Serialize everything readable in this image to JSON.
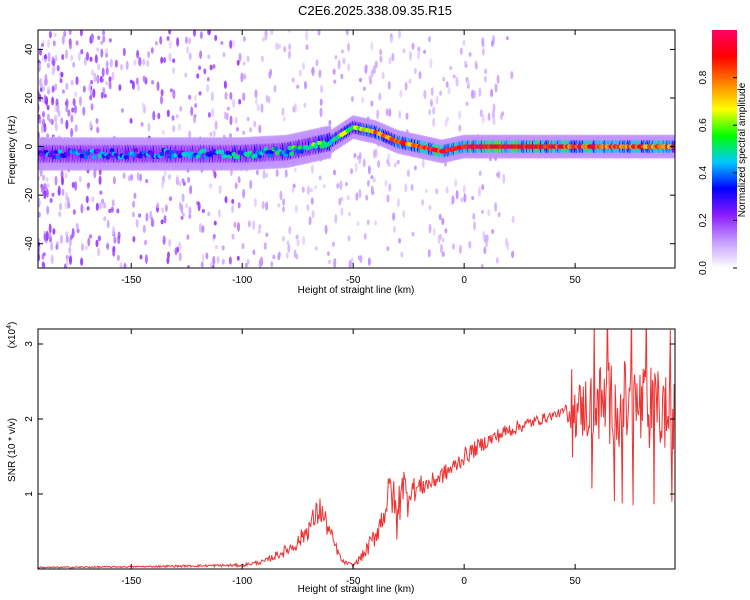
{
  "title": "C2E6.2025.338.09.35.R15",
  "colors": {
    "accent_line": "#ee3333",
    "axis": "#000000"
  },
  "chart_data": [
    {
      "type": "heatmap",
      "xlabel": "Height of straight line (km)",
      "ylabel": "Frequency (Hz)",
      "xlim": [
        -192,
        95
      ],
      "ylim": [
        -50,
        48
      ],
      "xticks": [
        -150,
        -100,
        -50,
        0,
        50
      ],
      "yticks": [
        -40,
        -20,
        0,
        20,
        40
      ],
      "grid": false,
      "colorbar": {
        "label": "Normalized spectral amplitude",
        "range": [
          0.0,
          1.0
        ],
        "ticks": [
          "0.0",
          "0.2",
          "0.4",
          "0.6",
          "0.8"
        ],
        "colormap": [
          "#ffffff",
          "#c69cff",
          "#8c1aff",
          "#0000ff",
          "#00c8ff",
          "#00ff00",
          "#ffff00",
          "#ff8000",
          "#ff0000",
          "#ff0066"
        ]
      },
      "ridge": {
        "description_points_x": [
          -192,
          -150,
          -100,
          -80,
          -60,
          -50,
          -40,
          -30,
          -20,
          -10,
          0,
          20,
          50,
          95
        ],
        "frequency_y": [
          -3,
          -3,
          -3,
          -2,
          2,
          8,
          6,
          2,
          0,
          -2,
          0,
          0,
          0,
          0
        ],
        "amplitude": [
          0.35,
          0.35,
          0.4,
          0.45,
          0.55,
          0.6,
          0.75,
          0.8,
          0.85,
          0.9,
          0.95,
          0.95,
          0.85,
          0.8
        ]
      }
    },
    {
      "type": "line",
      "xlabel": "Height of straight line (km)",
      "ylabel": "SNR (10 * v/v)",
      "y_multiplier": "(x10",
      "y_multiplier_exp": "4",
      "y_multiplier_close": ")",
      "xlim": [
        -192,
        95
      ],
      "ylim": [
        0,
        3.2
      ],
      "xticks": [
        -150,
        -100,
        -50,
        0,
        50
      ],
      "yticks": [
        1,
        2,
        3
      ],
      "grid": false,
      "series": [
        {
          "color": "#ee3333",
          "x": [
            -192,
            -150,
            -100,
            -90,
            -80,
            -75,
            -70,
            -65,
            -62,
            -58,
            -55,
            -50,
            -45,
            -40,
            -36,
            -33,
            -30,
            -28,
            -26,
            -24,
            -22,
            -20,
            -15,
            -10,
            -5,
            0,
            10,
            20,
            30,
            40,
            45,
            50,
            60,
            70,
            80,
            90,
            95
          ],
          "y": [
            0.02,
            0.03,
            0.05,
            0.1,
            0.25,
            0.35,
            0.55,
            0.8,
            0.6,
            0.3,
            0.1,
            0.05,
            0.2,
            0.45,
            0.75,
            1.1,
            0.6,
            1.3,
            0.9,
            1.1,
            1.05,
            1.1,
            1.15,
            1.25,
            1.35,
            1.5,
            1.7,
            1.85,
            1.95,
            2.05,
            2.1,
            2.1,
            2.2,
            2.2,
            2.15,
            2.1,
            2.0
          ],
          "noise": [
            0.01,
            0.01,
            0.02,
            0.03,
            0.08,
            0.1,
            0.15,
            0.2,
            0.15,
            0.08,
            0.03,
            0.02,
            0.08,
            0.15,
            0.2,
            0.3,
            0.35,
            0.35,
            0.3,
            0.2,
            0.15,
            0.15,
            0.12,
            0.12,
            0.12,
            0.12,
            0.1,
            0.1,
            0.08,
            0.06,
            0.05,
            0.35,
            0.55,
            0.6,
            0.6,
            0.55,
            0.5
          ]
        }
      ]
    }
  ]
}
